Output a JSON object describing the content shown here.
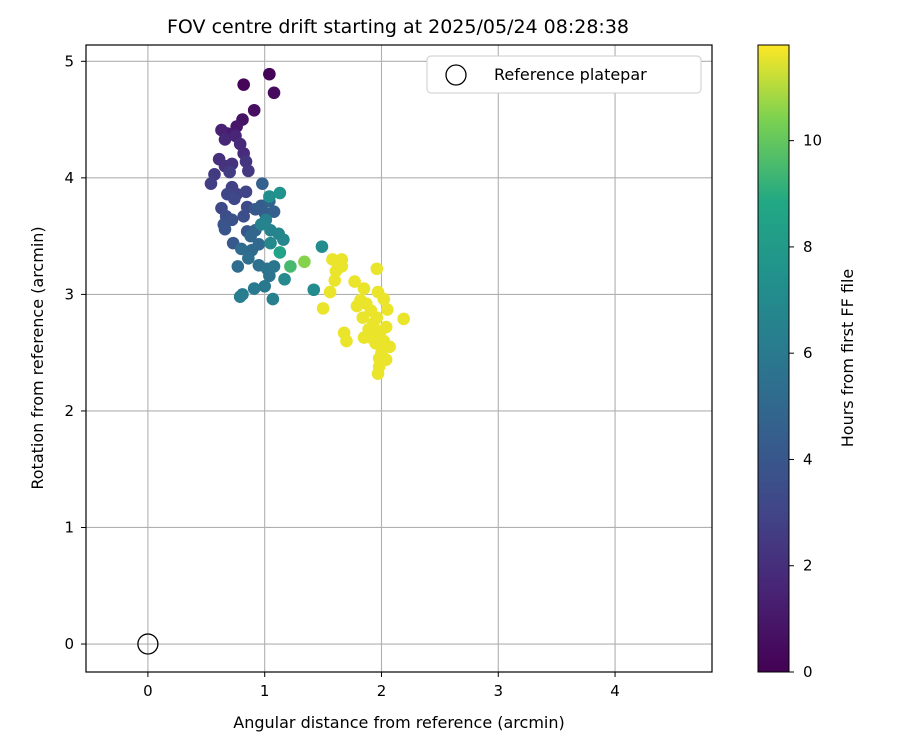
{
  "chart_data": {
    "type": "scatter",
    "title": "FOV centre drift starting at 2025/05/24 08:28:38",
    "xlabel": "Angular distance from reference (arcmin)",
    "ylabel": "Rotation from reference (arcmin)",
    "xlim": [
      -0.53,
      4.83
    ],
    "ylim": [
      -0.24,
      5.14
    ],
    "xticks": [
      "0",
      "1",
      "2",
      "3",
      "4"
    ],
    "yticks": [
      "0",
      "1",
      "2",
      "3",
      "4",
      "5"
    ],
    "grid": true,
    "legend": {
      "placement": "top-right",
      "entries": [
        "Reference platepar"
      ]
    },
    "colorbar": {
      "label": "Hours from first FF file",
      "min": 0,
      "max": 11.8,
      "ticks": [
        "0",
        "2",
        "4",
        "6",
        "8",
        "10"
      ],
      "colormap": "viridis"
    },
    "reference_point": {
      "x": 0,
      "y": 0,
      "label": "Reference platepar"
    },
    "series": [
      {
        "values": [
          [
            1.04,
            4.89,
            0.1
          ],
          [
            0.82,
            4.8,
            0.2
          ],
          [
            1.08,
            4.73,
            0.4
          ],
          [
            0.91,
            4.58,
            0.6
          ],
          [
            0.81,
            4.5,
            0.8
          ],
          [
            0.76,
            4.44,
            1.0
          ],
          [
            0.68,
            4.38,
            1.2
          ],
          [
            0.63,
            4.41,
            1.4
          ],
          [
            0.75,
            4.36,
            1.6
          ],
          [
            0.66,
            4.33,
            1.7
          ],
          [
            0.79,
            4.29,
            1.8
          ],
          [
            0.82,
            4.21,
            1.9
          ],
          [
            0.61,
            4.16,
            2.0
          ],
          [
            0.72,
            4.12,
            2.1
          ],
          [
            0.66,
            4.1,
            2.2
          ],
          [
            0.84,
            4.14,
            2.3
          ],
          [
            0.86,
            4.06,
            2.4
          ],
          [
            0.57,
            4.03,
            2.5
          ],
          [
            0.7,
            4.05,
            2.6
          ],
          [
            0.54,
            3.95,
            2.7
          ],
          [
            0.72,
            3.92,
            2.8
          ],
          [
            0.76,
            3.86,
            2.9
          ],
          [
            0.84,
            3.88,
            3.0
          ],
          [
            0.68,
            3.86,
            3.1
          ],
          [
            0.74,
            3.82,
            3.2
          ],
          [
            0.63,
            3.74,
            3.3
          ],
          [
            0.85,
            3.75,
            3.4
          ],
          [
            0.67,
            3.67,
            3.5
          ],
          [
            0.82,
            3.67,
            3.6
          ],
          [
            0.72,
            3.64,
            3.7
          ],
          [
            0.65,
            3.6,
            3.8
          ],
          [
            0.66,
            3.56,
            3.9
          ],
          [
            0.85,
            3.54,
            4.0
          ],
          [
            0.73,
            3.44,
            4.1
          ],
          [
            0.92,
            3.73,
            4.2
          ],
          [
            0.97,
            3.76,
            4.3
          ],
          [
            1.0,
            3.7,
            4.4
          ],
          [
            1.08,
            3.71,
            4.5
          ],
          [
            0.98,
            3.95,
            4.6
          ],
          [
            1.04,
            3.8,
            4.7
          ],
          [
            0.92,
            3.55,
            4.8
          ],
          [
            0.88,
            3.5,
            4.9
          ],
          [
            0.95,
            3.43,
            5.0
          ],
          [
            0.89,
            3.38,
            5.1
          ],
          [
            0.8,
            3.39,
            5.2
          ],
          [
            0.77,
            3.24,
            5.3
          ],
          [
            0.86,
            3.31,
            5.4
          ],
          [
            0.95,
            3.25,
            5.5
          ],
          [
            1.02,
            3.22,
            5.6
          ],
          [
            1.04,
            3.16,
            5.7
          ],
          [
            1.08,
            3.24,
            5.8
          ],
          [
            1.0,
            3.07,
            5.9
          ],
          [
            0.91,
            3.05,
            6.0
          ],
          [
            0.81,
            3.0,
            6.1
          ],
          [
            0.79,
            2.98,
            6.2
          ],
          [
            1.07,
            2.96,
            6.3
          ],
          [
            1.01,
            3.64,
            6.4
          ],
          [
            1.05,
            3.55,
            6.5
          ],
          [
            0.97,
            3.6,
            6.6
          ],
          [
            1.12,
            3.52,
            6.7
          ],
          [
            1.16,
            3.47,
            6.8
          ],
          [
            1.05,
            3.44,
            6.9
          ],
          [
            1.17,
            3.13,
            7.0
          ],
          [
            1.42,
            3.04,
            7.1
          ],
          [
            1.49,
            3.41,
            7.2
          ],
          [
            1.04,
            3.84,
            7.3
          ],
          [
            1.13,
            3.87,
            7.5
          ],
          [
            1.13,
            3.36,
            8.5
          ],
          [
            1.22,
            3.24,
            9.5
          ],
          [
            1.34,
            3.28,
            10.5
          ],
          [
            1.58,
            3.3,
            11.6
          ],
          [
            1.66,
            3.3,
            11.6
          ],
          [
            1.61,
            3.2,
            11.6
          ],
          [
            1.66,
            3.24,
            11.6
          ],
          [
            1.6,
            3.12,
            11.6
          ],
          [
            1.56,
            3.02,
            11.6
          ],
          [
            1.5,
            2.88,
            11.6
          ],
          [
            1.68,
            2.67,
            11.6
          ],
          [
            1.7,
            2.6,
            11.6
          ],
          [
            1.77,
            3.11,
            11.6
          ],
          [
            1.85,
            3.05,
            11.6
          ],
          [
            1.96,
            3.22,
            11.6
          ],
          [
            1.82,
            2.95,
            11.6
          ],
          [
            1.87,
            2.92,
            11.6
          ],
          [
            1.79,
            2.9,
            11.6
          ],
          [
            1.84,
            2.8,
            11.6
          ],
          [
            1.91,
            2.86,
            11.6
          ],
          [
            1.97,
            3.02,
            11.6
          ],
          [
            2.02,
            2.96,
            11.6
          ],
          [
            2.05,
            2.87,
            11.6
          ],
          [
            1.96,
            2.8,
            11.6
          ],
          [
            2.04,
            2.72,
            11.6
          ],
          [
            1.99,
            2.68,
            11.6
          ],
          [
            2.02,
            2.6,
            11.6
          ],
          [
            1.95,
            2.58,
            11.6
          ],
          [
            2.07,
            2.55,
            11.6
          ],
          [
            1.98,
            2.45,
            11.6
          ],
          [
            2.0,
            2.5,
            11.6
          ],
          [
            2.04,
            2.44,
            11.6
          ],
          [
            1.98,
            2.38,
            11.6
          ],
          [
            1.97,
            2.32,
            11.6
          ],
          [
            2.19,
            2.79,
            11.6
          ],
          [
            1.85,
            2.63,
            11.6
          ],
          [
            1.89,
            2.7,
            11.6
          ],
          [
            1.93,
            2.75,
            11.6
          ],
          [
            1.91,
            2.63,
            11.6
          ]
        ]
      }
    ]
  }
}
